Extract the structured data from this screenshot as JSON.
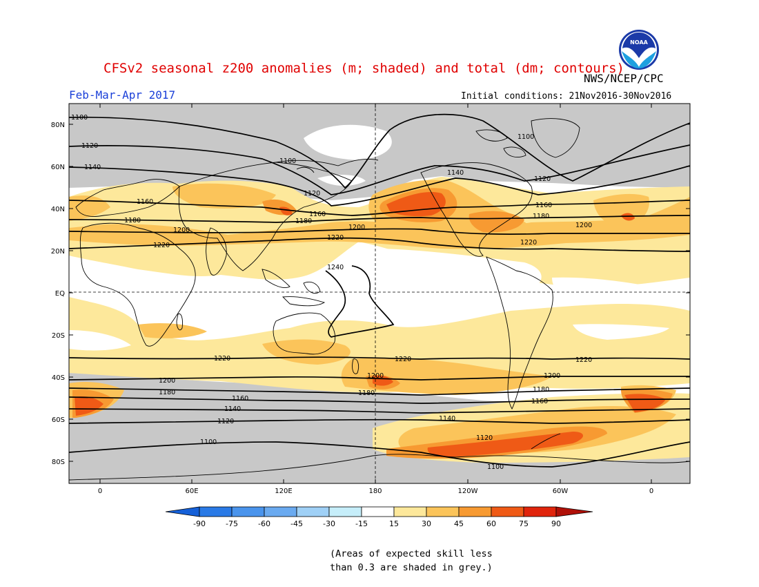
{
  "header": {
    "title": "CFSv2 seasonal z200 anomalies (m; shaded) and total (dm; contours)",
    "agency": "NWS/NCEP/CPC",
    "period": "Feb-Mar-Apr 2017",
    "initial_conditions": "Initial conditions: 21Nov2016-30Nov2016",
    "logo_text": "NOAA"
  },
  "map": {
    "lat_labels": [
      "80N",
      "60N",
      "40N",
      "20N",
      "EQ",
      "20S",
      "40S",
      "60S",
      "80S"
    ],
    "lon_labels": [
      "0",
      "60E",
      "120E",
      "180",
      "120W",
      "60W",
      "0"
    ],
    "contour_labels": [
      "1100",
      "1120",
      "1140",
      "1160",
      "1180",
      "1200",
      "1220",
      "1240"
    ]
  },
  "colorbar": {
    "labels": [
      "-90",
      "-75",
      "-60",
      "-45",
      "-30",
      "-15",
      "15",
      "30",
      "45",
      "60",
      "75",
      "90"
    ],
    "colors": [
      "#1560d8",
      "#2a7ae6",
      "#4a94ec",
      "#6aaaf0",
      "#9fd0f6",
      "#c6eefa",
      "#ffffff",
      "#fde89b",
      "#fbc45a",
      "#f79a32",
      "#ef5a16",
      "#e0240c",
      "#b01008"
    ]
  },
  "colors": {
    "skill_grey": "#c8c8c8",
    "anom_15_30": "#fde89b",
    "anom_30_45": "#fbc45a",
    "anom_45_60": "#f79a32",
    "anom_60_75": "#ef5a16",
    "title_red": "#e00000",
    "period_blue": "#1a3fd8"
  },
  "footnote": {
    "line1": "(Areas of expected skill less",
    "line2": "than 0.3 are shaded in grey.)"
  }
}
